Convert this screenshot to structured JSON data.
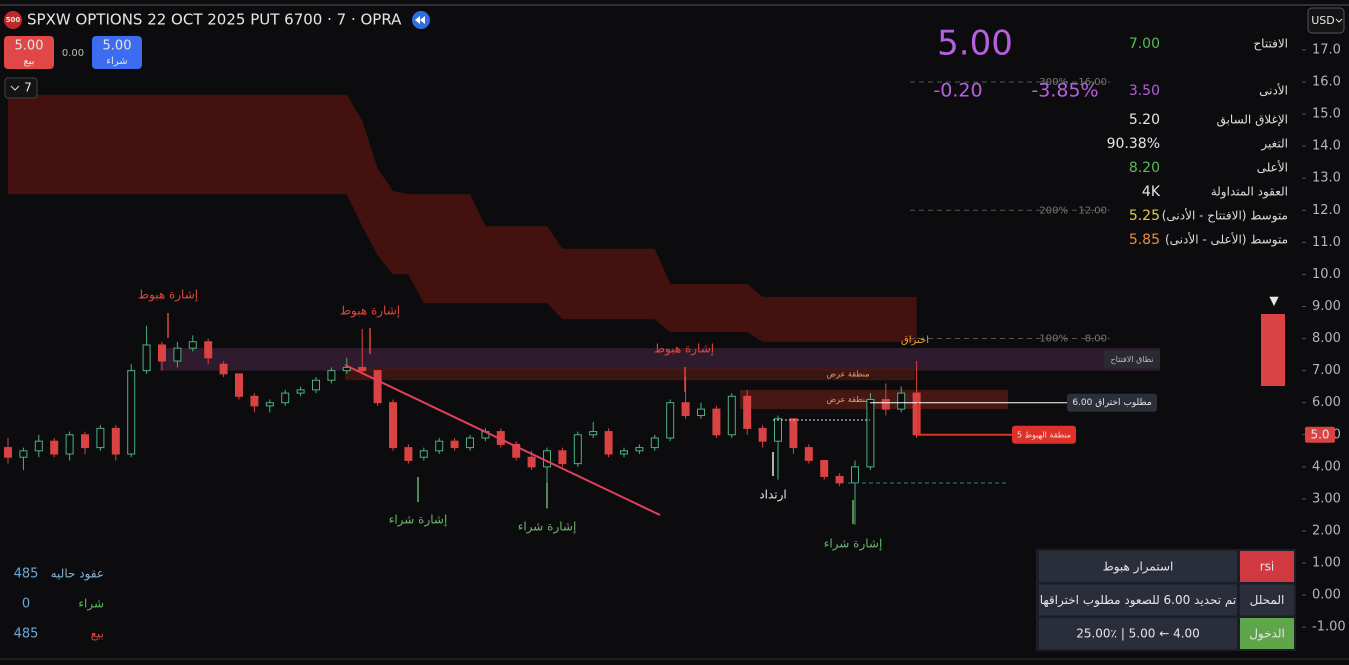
{
  "header": {
    "badge": "500",
    "title": "SPXW OPTIONS 22 OCT 2025 PUT 6700 · 7 · OPRA",
    "sell": {
      "price": "5.00",
      "label": "بيع"
    },
    "spread": "0.00",
    "buy": {
      "price": "5.00",
      "label": "شراء"
    },
    "interval": "7",
    "currency": "USD"
  },
  "quote": {
    "price": "5.00",
    "change": "-0.20",
    "change_pct": "-3.85%",
    "color": "#b65fe0"
  },
  "stats": [
    {
      "label": "الافتتاح",
      "value": "7.00",
      "color": "#5cb85c"
    },
    {
      "label": "الأدنى",
      "value": "3.50",
      "color": "#b65fe0"
    },
    {
      "label": "الإغلاق السابق",
      "value": "5.20",
      "color": "#e6e6e6"
    },
    {
      "label": "التغير",
      "value": "90.38%",
      "color": "#e6e6e6"
    },
    {
      "label": "الأعلى",
      "value": "8.20",
      "color": "#5cb85c"
    },
    {
      "label": "العقود المتداولة",
      "value": "4K",
      "color": "#e6e6e6"
    },
    {
      "label": "متوسط (الافتتاح - الأدنى)",
      "value": "5.25",
      "color": "#e8c84a"
    },
    {
      "label": "متوسط (الأعلى - الأدنى)",
      "value": "5.85",
      "color": "#e8913a"
    }
  ],
  "positions": [
    {
      "label": "عقود حاليه",
      "value": "485",
      "color": "#7fb3d5"
    },
    {
      "label": "شراء",
      "value": "0",
      "color": "#5cb85c"
    },
    {
      "label": "بيع",
      "value": "485",
      "color": "#e0463c"
    }
  ],
  "panel": [
    {
      "label": "rsi",
      "value": "استمرار هبوط",
      "color": "#d0393f"
    },
    {
      "label": "المحلل",
      "value": "تم تحديد 6.00 للصعود مطلوب اختراقها",
      "color": "#2a2e3a"
    },
    {
      "label": "الدخول",
      "value": "4.00 ← 5.00 | 25.00٪",
      "color": "#5fa64b"
    }
  ],
  "chart_data": {
    "type": "candlestick",
    "open": [
      4.6,
      4.3,
      4.5,
      4.8,
      4.4,
      5.0,
      4.6,
      5.2,
      4.4,
      7.0,
      7.8,
      7.3,
      7.7,
      7.9,
      7.2,
      6.9,
      6.2,
      5.9,
      6.0,
      6.3,
      6.4,
      6.7,
      7.0,
      7.1,
      7.0,
      6.0,
      4.6,
      4.3,
      4.5,
      4.8,
      4.6,
      4.9,
      5.1,
      4.7,
      4.3,
      4.0,
      4.5,
      4.1,
      5.0,
      5.1,
      4.4,
      4.5,
      4.6,
      4.9,
      6.0,
      5.6,
      5.8,
      5.0,
      6.2,
      5.2,
      4.8,
      5.5,
      4.6,
      4.2,
      3.7,
      3.5,
      4.0,
      6.1,
      5.8,
      6.3
    ],
    "high": [
      4.9,
      4.6,
      5.0,
      4.9,
      5.1,
      5.1,
      5.3,
      5.3,
      7.2,
      8.4,
      7.9,
      7.9,
      8.1,
      8.0,
      7.3,
      6.9,
      6.3,
      6.1,
      6.4,
      6.5,
      6.8,
      7.1,
      7.4,
      8.3,
      7.0,
      6.1,
      4.7,
      4.6,
      4.9,
      4.9,
      5.0,
      5.2,
      5.2,
      4.8,
      4.5,
      4.6,
      4.6,
      5.1,
      5.4,
      5.2,
      4.6,
      4.7,
      5.0,
      6.1,
      6.8,
      6.0,
      5.9,
      6.3,
      6.4,
      5.3,
      5.6,
      5.5,
      4.7,
      4.2,
      3.8,
      4.2,
      6.3,
      6.6,
      6.5,
      7.3
    ],
    "low": [
      4.1,
      3.9,
      4.3,
      4.3,
      4.2,
      4.4,
      4.5,
      4.2,
      4.3,
      6.9,
      7.0,
      7.1,
      7.6,
      7.2,
      6.8,
      6.1,
      5.7,
      5.7,
      5.9,
      6.2,
      6.3,
      6.6,
      6.9,
      6.9,
      5.9,
      4.5,
      4.1,
      4.2,
      4.4,
      4.5,
      4.5,
      4.8,
      4.6,
      4.2,
      3.9,
      2.7,
      4.0,
      4.0,
      4.9,
      4.3,
      4.3,
      4.4,
      4.5,
      4.8,
      5.5,
      5.5,
      4.9,
      4.9,
      5.0,
      4.6,
      3.6,
      4.4,
      4.1,
      3.6,
      3.4,
      2.2,
      3.9,
      5.6,
      5.7,
      4.9
    ],
    "close": [
      4.3,
      4.5,
      4.8,
      4.4,
      5.0,
      4.6,
      5.2,
      4.4,
      7.0,
      7.8,
      7.3,
      7.7,
      7.9,
      7.4,
      6.9,
      6.2,
      5.9,
      6.0,
      6.3,
      6.4,
      6.7,
      7.0,
      7.1,
      7.0,
      6.0,
      4.6,
      4.2,
      4.5,
      4.8,
      4.6,
      4.9,
      5.1,
      4.7,
      4.3,
      4.0,
      4.5,
      4.1,
      5.0,
      5.1,
      4.4,
      4.5,
      4.6,
      4.9,
      6.0,
      5.6,
      5.8,
      5.0,
      6.2,
      5.2,
      4.8,
      5.5,
      4.6,
      4.2,
      3.7,
      3.5,
      4.0,
      6.1,
      5.8,
      6.3,
      5.0
    ],
    "up_color": "#4caf80",
    "down_color": "#d94343",
    "ylim": [
      -1.96,
      18.4
    ],
    "yticks": [
      {
        "value": 17,
        "label": "17.0"
      },
      {
        "value": 16,
        "label": "16.0"
      },
      {
        "value": 15,
        "label": "15.0"
      },
      {
        "value": 14,
        "label": "14.0"
      },
      {
        "value": 13,
        "label": "13.0"
      },
      {
        "value": 12,
        "label": "12.0"
      },
      {
        "value": 11,
        "label": "11.0"
      },
      {
        "value": 10,
        "label": "10.0"
      },
      {
        "value": 9,
        "label": "9.00"
      },
      {
        "value": 8,
        "label": "8.00"
      },
      {
        "value": 7,
        "label": "7.00"
      },
      {
        "value": 6,
        "label": "6.00"
      },
      {
        "value": 5,
        "label": "5.00"
      },
      {
        "value": 4,
        "label": "4.00"
      },
      {
        "value": 3,
        "label": "3.00"
      },
      {
        "value": 2,
        "label": "2.00"
      },
      {
        "value": 1,
        "label": "1.00"
      },
      {
        "value": 0,
        "label": "0.00"
      },
      {
        "value": -1,
        "label": "-1.00"
      }
    ],
    "band": {
      "upper": [
        15.6,
        15.6,
        15.6,
        15.6,
        15.6,
        15.6,
        15.6,
        15.6,
        15.6,
        15.6,
        15.6,
        15.6,
        15.6,
        15.6,
        15.6,
        15.6,
        15.6,
        15.6,
        15.6,
        15.6,
        15.6,
        15.6,
        15.6,
        14.8,
        13.3,
        12.6,
        12.5,
        12.5,
        12.5,
        12.5,
        12.5,
        11.5,
        11.5,
        11.5,
        11.5,
        11.5,
        10.8,
        10.8,
        10.8,
        10.8,
        10.8,
        10.8,
        10.8,
        9.7,
        9.7,
        9.7,
        9.7,
        9.7,
        9.7,
        9.3,
        9.3,
        9.3,
        9.3,
        9.3,
        9.3,
        9.3,
        9.3,
        9.3,
        9.3,
        9.3
      ],
      "lower": [
        12.5,
        12.5,
        12.5,
        12.5,
        12.5,
        12.5,
        12.5,
        12.5,
        12.5,
        12.5,
        12.5,
        12.5,
        12.5,
        12.5,
        12.5,
        12.5,
        12.5,
        12.5,
        12.5,
        12.5,
        12.5,
        12.5,
        12.5,
        11.5,
        10.6,
        10.0,
        10.0,
        9.1,
        9.1,
        9.1,
        9.1,
        9.1,
        9.1,
        9.1,
        9.1,
        9.1,
        8.6,
        8.6,
        8.6,
        8.6,
        8.6,
        8.6,
        8.6,
        8.2,
        8.2,
        8.2,
        8.2,
        8.2,
        8.2,
        7.9,
        7.9,
        7.9,
        7.9,
        7.9,
        7.9,
        7.9,
        7.9,
        7.9,
        7.9,
        7.9
      ],
      "color": "#4a130e"
    },
    "zones": [
      {
        "label": "نطاق الافتتاح",
        "top": 7.7,
        "bottom": 7.0,
        "color": "#3a2038"
      },
      {
        "label": "منطقة عرض",
        "top": 7.1,
        "bottom": 6.7,
        "color": "#4a1a14"
      },
      {
        "label": "منطقة عرض",
        "top": 6.4,
        "bottom": 5.8,
        "color": "#5a1c16"
      }
    ],
    "levels": [
      {
        "label": "مطلوب اختراق 6.00",
        "value": 6,
        "color": "#ffffff"
      },
      {
        "label": "منطقة الهبوط 5",
        "value": 5,
        "color": "#e0302a"
      }
    ],
    "targets": [
      {
        "label": "300%",
        "price": {
          "value": 16,
          "label": "16.00"
        }
      },
      {
        "label": "200%",
        "price": {
          "value": 12,
          "label": "12.00"
        }
      },
      {
        "label": "100%",
        "price": {
          "value": 8,
          "label": "8.00"
        }
      }
    ],
    "last": {
      "value": 5,
      "label": "5.0"
    },
    "breakout_label": "اختراق",
    "annotations": [
      {
        "label": "إشارة هبوط",
        "color": "#e0463c"
      },
      {
        "label": "إشارة هبوط",
        "color": "#e0463c"
      },
      {
        "label": "إشارة هبوط",
        "color": "#e0463c"
      },
      {
        "label": "إشارة شراء",
        "color": "#6fb26f"
      },
      {
        "label": "إشارة شراء",
        "color": "#6fb26f"
      },
      {
        "label": "إشارة شراء",
        "color": "#6fb26f"
      },
      {
        "label": "ارتداد",
        "color": "#e6e6e6"
      }
    ]
  }
}
